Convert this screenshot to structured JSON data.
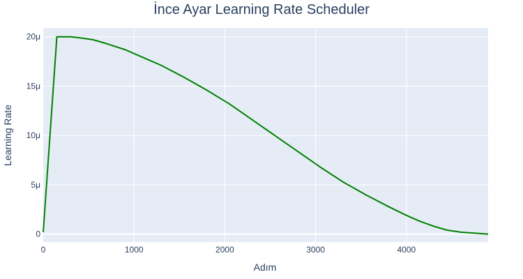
{
  "chart_data": {
    "type": "line",
    "title": "İnce Ayar Learning Rate Scheduler",
    "xlabel": "Adım",
    "ylabel": "Learning Rate",
    "xlim": [
      0,
      4900
    ],
    "ylim": [
      -8e-07,
      2.09e-05
    ],
    "x_ticks": [
      0,
      1000,
      2000,
      3000,
      4000
    ],
    "x_tick_labels": [
      "0",
      "1000",
      "2000",
      "3000",
      "4000"
    ],
    "y_ticks": [
      0,
      5e-06,
      1e-05,
      1.5e-05,
      2e-05
    ],
    "y_tick_labels": [
      "0",
      "5μ",
      "10μ",
      "15μ",
      "20μ"
    ],
    "grid": true,
    "background": "#e5ecf6",
    "series": [
      {
        "color": "#008000",
        "x": [
          0,
          150,
          300,
          400,
          550,
          700,
          900,
          1100,
          1300,
          1550,
          1800,
          2050,
          2300,
          2550,
          2800,
          3050,
          3300,
          3550,
          3800,
          4000,
          4150,
          4300,
          4450,
          4600,
          4750,
          4900
        ],
        "y": [
          2e-07,
          2e-05,
          2e-05,
          1.99e-05,
          1.97e-05,
          1.93e-05,
          1.87e-05,
          1.79e-05,
          1.71e-05,
          1.59e-05,
          1.46e-05,
          1.32e-05,
          1.16e-05,
          1e-05,
          8.4e-06,
          6.8e-06,
          5.3e-06,
          4e-06,
          2.8e-06,
          1.9e-06,
          1.3e-06,
          8e-07,
          4e-07,
          2e-07,
          1e-07,
          0
        ]
      }
    ]
  }
}
